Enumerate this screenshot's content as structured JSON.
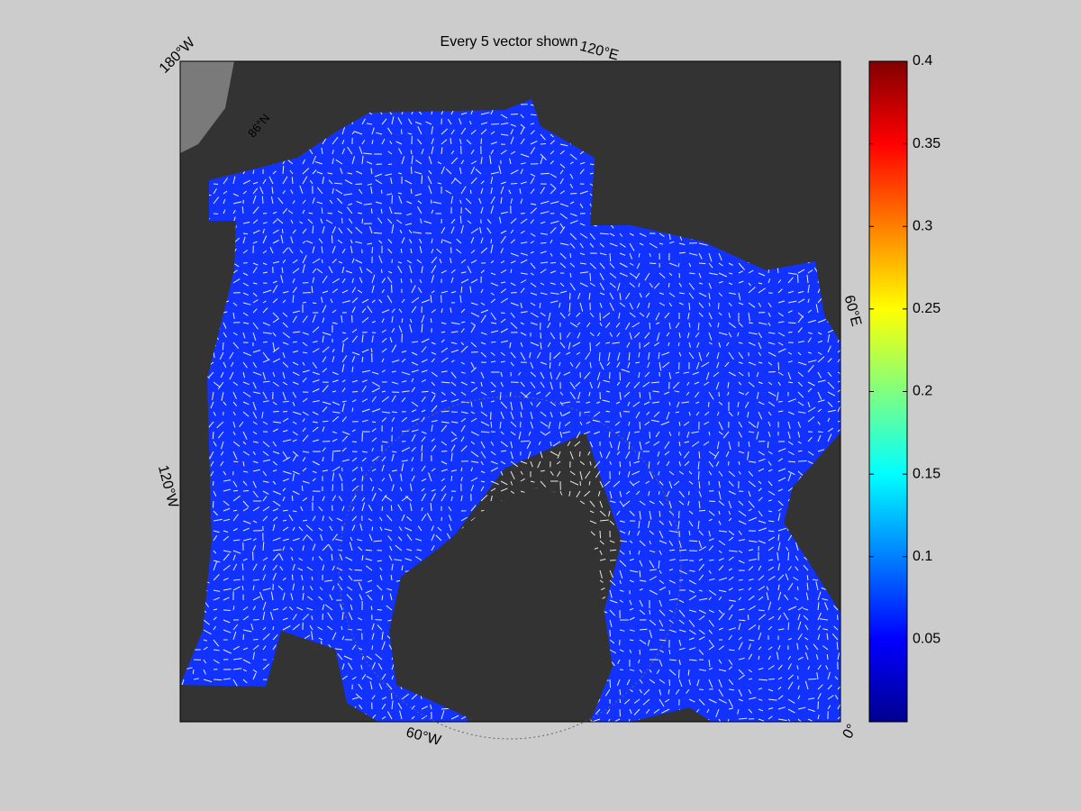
{
  "chart_data": {
    "type": "map",
    "title": "Every 5 vector shown",
    "lon_labels": [
      "180°W",
      "120°E",
      "60°E",
      "0°",
      "60°W",
      "120°W"
    ],
    "lat_labels": [
      "86°N"
    ],
    "colorbar": {
      "colormap": "jet",
      "clim": [
        0,
        0.4
      ],
      "ticks": [
        0.05,
        0.1,
        0.15,
        0.2,
        0.25,
        0.3,
        0.35,
        0.4
      ]
    }
  }
}
